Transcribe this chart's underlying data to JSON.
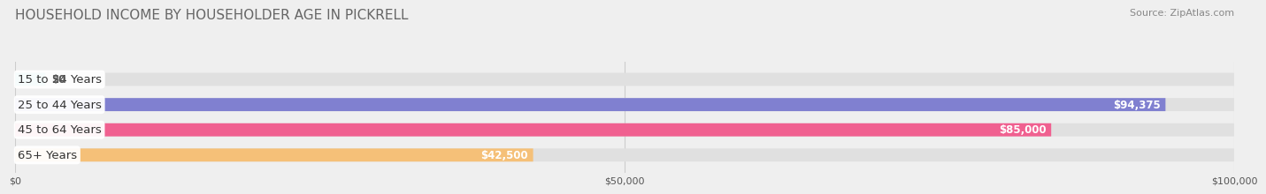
{
  "title": "HOUSEHOLD INCOME BY HOUSEHOLDER AGE IN PICKRELL",
  "source": "Source: ZipAtlas.com",
  "categories": [
    "15 to 24 Years",
    "25 to 44 Years",
    "45 to 64 Years",
    "65+ Years"
  ],
  "values": [
    0,
    94375,
    85000,
    42500
  ],
  "bar_colors": [
    "#5ecfcb",
    "#8080d0",
    "#f06090",
    "#f5c078"
  ],
  "bg_color": "#efefef",
  "bar_bg_color": "#e0e0e0",
  "xlim": [
    0,
    100000
  ],
  "xticks": [
    0,
    50000,
    100000
  ],
  "xtick_labels": [
    "$0",
    "$50,000",
    "$100,000"
  ],
  "value_labels": [
    "$0",
    "$94,375",
    "$85,000",
    "$42,500"
  ],
  "title_fontsize": 11,
  "source_fontsize": 8,
  "tick_fontsize": 8,
  "label_fontsize": 9.5,
  "value_fontsize": 8.5,
  "bar_height": 0.52
}
